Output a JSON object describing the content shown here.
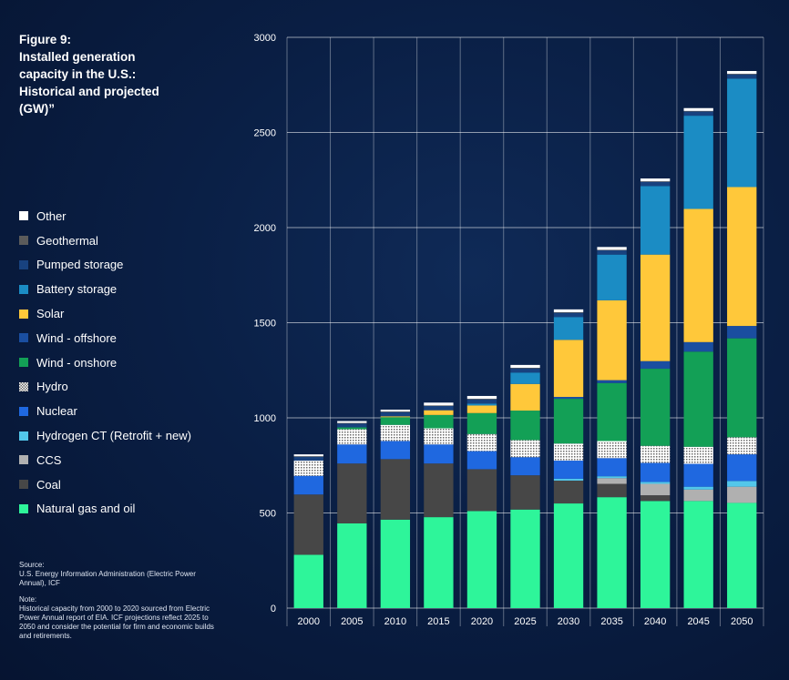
{
  "figure": {
    "title": "Figure 9:\nInstalled generation capacity in the U.S.: Historical and projected (GW)”"
  },
  "legend": [
    {
      "label": "Other",
      "color": "#ffffff",
      "pattern": "solid"
    },
    {
      "label": "Geothermal",
      "color": "#5b5b5b",
      "pattern": "solid"
    },
    {
      "label": "Pumped storage",
      "color": "#18427f",
      "pattern": "solid"
    },
    {
      "label": "Battery storage",
      "color": "#1b8cc4",
      "pattern": "solid"
    },
    {
      "label": "Solar",
      "color": "#ffc83a",
      "pattern": "solid"
    },
    {
      "label": "Wind - offshore",
      "color": "#1a4ea0",
      "pattern": "solid"
    },
    {
      "label": "Wind - onshore",
      "color": "#13a056",
      "pattern": "solid"
    },
    {
      "label": "Hydro",
      "color": "#e8e8e8",
      "pattern": "dotted"
    },
    {
      "label": "Nuclear",
      "color": "#1f68e0",
      "pattern": "solid"
    },
    {
      "label": "Hydrogen CT (Retrofit + new)",
      "color": "#52c7ea",
      "pattern": "solid"
    },
    {
      "label": "CCS",
      "color": "#b0b0b0",
      "pattern": "solid"
    },
    {
      "label": "Coal",
      "color": "#474747",
      "pattern": "solid"
    },
    {
      "label": "Natural gas and oil",
      "color": "#2ef59a",
      "pattern": "solid"
    }
  ],
  "source": {
    "heading": "Source:",
    "text": "U.S. Energy Information Administration (Electric Power Annual), ICF",
    "note_heading": "Note:",
    "note": "Historical capacity from 2000 to 2020 sourced from Electric Power Annual report of EIA. ICF projections reflect 2025 to 2050 and consider the potential for firm and economic builds and retirements."
  },
  "chart_data": {
    "type": "bar",
    "stacked": true,
    "categories": [
      "2000",
      "2005",
      "2010",
      "2015",
      "2020",
      "2025",
      "2030",
      "2035",
      "2040",
      "2045",
      "2050"
    ],
    "ylim": [
      0,
      3000
    ],
    "yticks": [
      0,
      500,
      1000,
      1500,
      2000,
      2500,
      3000
    ],
    "grid": true,
    "legend_position": "left",
    "series": [
      {
        "name": "Natural gas and oil",
        "color": "#2ef59a",
        "values": [
          280,
          445,
          465,
          478,
          510,
          518,
          550,
          583,
          563,
          563,
          553
        ]
      },
      {
        "name": "Coal",
        "color": "#474747",
        "values": [
          317,
          315,
          318,
          282,
          220,
          180,
          120,
          70,
          30,
          0,
          0
        ]
      },
      {
        "name": "CCS",
        "color": "#b0b0b0",
        "values": [
          0,
          0,
          0,
          0,
          0,
          0,
          0,
          30,
          60,
          60,
          85
        ]
      },
      {
        "name": "Hydrogen CT (Retrofit + new)",
        "color": "#52c7ea",
        "values": [
          0,
          0,
          0,
          0,
          0,
          0,
          10,
          10,
          10,
          15,
          30
        ]
      },
      {
        "name": "Nuclear",
        "color": "#1f68e0",
        "values": [
          98,
          100,
          95,
          100,
          95,
          95,
          95,
          95,
          100,
          120,
          140
        ]
      },
      {
        "name": "Hydro",
        "color": "#e8e8e8",
        "pattern": "dotted",
        "values": [
          80,
          80,
          85,
          85,
          90,
          90,
          90,
          90,
          90,
          90,
          90
        ]
      },
      {
        "name": "Wind - onshore",
        "color": "#13a056",
        "values": [
          0,
          10,
          40,
          70,
          110,
          155,
          235,
          305,
          405,
          500,
          520
        ]
      },
      {
        "name": "Wind - offshore",
        "color": "#1a4ea0",
        "values": [
          0,
          0,
          0,
          0,
          0,
          0,
          10,
          15,
          40,
          50,
          65
        ]
      },
      {
        "name": "Solar",
        "color": "#ffc83a",
        "values": [
          0,
          0,
          5,
          25,
          40,
          140,
          300,
          420,
          560,
          700,
          730
        ]
      },
      {
        "name": "Battery storage",
        "color": "#1b8cc4",
        "values": [
          0,
          0,
          0,
          0,
          10,
          60,
          120,
          240,
          360,
          490,
          570
        ]
      },
      {
        "name": "Pumped storage",
        "color": "#18427f",
        "values": [
          20,
          20,
          22,
          22,
          22,
          22,
          22,
          22,
          22,
          22,
          22
        ]
      },
      {
        "name": "Geothermal",
        "color": "#5b5b5b",
        "values": [
          3,
          3,
          3,
          3,
          3,
          3,
          3,
          3,
          3,
          3,
          3
        ]
      },
      {
        "name": "Other",
        "color": "#ffffff",
        "values": [
          10,
          10,
          10,
          15,
          15,
          15,
          15,
          15,
          15,
          15,
          15
        ]
      }
    ]
  }
}
